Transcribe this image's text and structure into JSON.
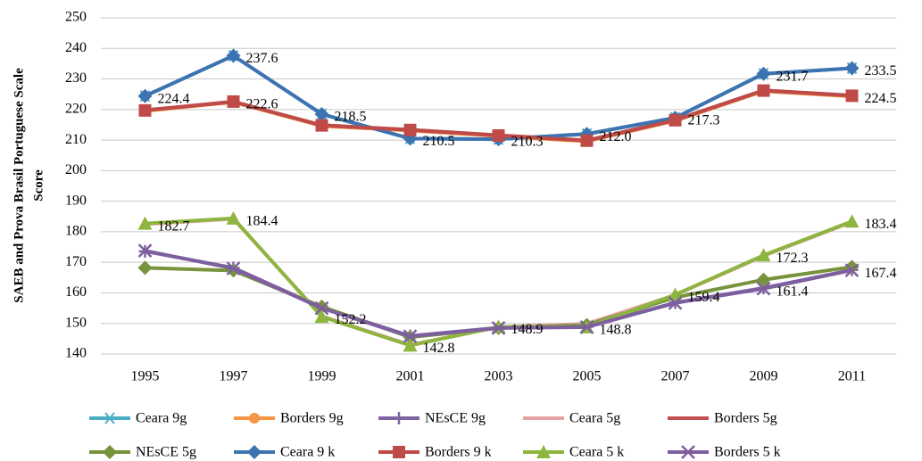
{
  "chart_data": {
    "type": "line",
    "y_label": [
      "SAEB and Prova Brasil Portuguese Scale",
      "Score"
    ],
    "categories": [
      "1995",
      "1997",
      "1999",
      "2001",
      "2003",
      "2005",
      "2007",
      "2009",
      "2011"
    ],
    "ylim": [
      140,
      250
    ],
    "yticks": [
      140,
      150,
      160,
      170,
      180,
      190,
      200,
      210,
      220,
      230,
      240,
      250
    ],
    "grid": true,
    "legend": "bottom",
    "series": [
      {
        "name": "Ceara 9g",
        "color": "#4bacc6",
        "marker": "star",
        "values": [
          224.4,
          237.6,
          218.5,
          210.5,
          210.3,
          212.0,
          217.3,
          231.7,
          233.5
        ]
      },
      {
        "name": "Borders 9g",
        "color": "#f79646",
        "marker": "circle",
        "values": [
          219.5,
          222.4,
          214.6,
          213.1,
          211.3,
          209.6,
          216.3,
          226.0,
          224.3
        ]
      },
      {
        "name": "NEsCE 9g",
        "color": "#8064a2",
        "marker": "plus",
        "values": [
          173.6,
          168.2,
          155.2,
          145.9,
          148.6,
          148.9,
          156.8,
          161.6,
          167.5
        ]
      },
      {
        "name": "Ceara 5g",
        "color": "#e6a3a3",
        "marker": "none",
        "values": [
          182.5,
          184.2,
          152.4,
          143.0,
          148.8,
          149.9,
          159.3,
          172.1,
          183.2
        ]
      },
      {
        "name": "Borders 5g",
        "color": "#c0504d",
        "marker": "none",
        "values": [
          219.8,
          222.5,
          214.9,
          213.4,
          211.6,
          209.9,
          216.6,
          226.3,
          224.6
        ]
      },
      {
        "name": "NEsCE 5g",
        "color": "#77933c",
        "marker": "diamond",
        "values": [
          168.2,
          167.3,
          155.5,
          145.5,
          148.5,
          149.5,
          158.5,
          164.3,
          168.5
        ]
      },
      {
        "name": "Ceara 9 k",
        "color": "#3d73b0",
        "marker": "diamond",
        "values": [
          224.4,
          237.6,
          218.5,
          210.5,
          210.3,
          212.0,
          217.3,
          231.7,
          233.5
        ],
        "value_labels": [
          "224.4",
          "237.6",
          "218.5",
          "210.5",
          "210.3",
          "212.0",
          "217.3",
          "231.7",
          "233.5"
        ]
      },
      {
        "name": "Borders 9 k",
        "color": "#be4b48",
        "marker": "square",
        "values": [
          219.7,
          222.6,
          214.8,
          213.3,
          211.5,
          209.8,
          216.5,
          226.2,
          224.5
        ],
        "value_labels": [
          null,
          "222.6",
          null,
          null,
          null,
          null,
          null,
          null,
          "224.5"
        ]
      },
      {
        "name": "Ceara 5 k",
        "color": "#8db53f",
        "marker": "triangle",
        "values": [
          182.7,
          184.4,
          152.2,
          142.8,
          148.9,
          148.8,
          159.4,
          172.3,
          183.4
        ],
        "value_labels": [
          "182.7",
          "184.4",
          "152.2",
          "142.8",
          "148.9",
          "148.8",
          "159.4",
          "172.3",
          "183.4"
        ]
      },
      {
        "name": "Borders 5 k",
        "color": "#7d5fa0",
        "marker": "x",
        "values": [
          173.8,
          168.0,
          155.0,
          145.8,
          148.5,
          148.8,
          156.7,
          161.4,
          167.4
        ],
        "value_labels": [
          null,
          null,
          null,
          null,
          null,
          null,
          null,
          "161.4",
          "167.4"
        ]
      }
    ]
  }
}
